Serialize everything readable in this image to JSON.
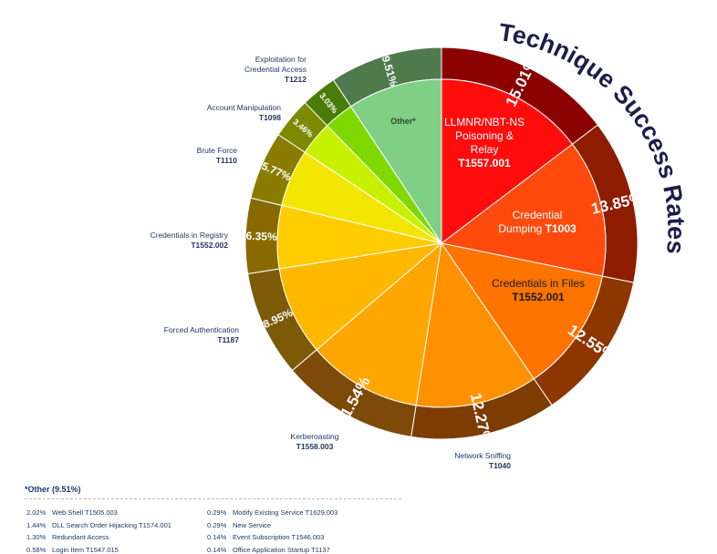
{
  "chart_data": {
    "type": "pie",
    "title": "Technique Success Rates",
    "slices": [
      {
        "value": 15.01,
        "label": "15.01%",
        "name": "LLMNR/NBT-NS Poisoning & Relay",
        "code": "T1557.001",
        "inner": "#ff0d0d",
        "outer": "#8b0000"
      },
      {
        "value": 13.85,
        "label": "13.85%",
        "name": "Credential Dumping",
        "code": "T1003",
        "inner": "#ff4a0d",
        "outer": "#8e1c00"
      },
      {
        "value": 12.55,
        "label": "12.55%",
        "name": "Credentials in Files",
        "code": "T1552.001",
        "inner": "#ff7400",
        "outer": "#8d3600"
      },
      {
        "value": 12.27,
        "label": "12.27%",
        "name": "Network Sniffing",
        "code": "T1040",
        "inner": "#ff9100",
        "outer": "#7c3c02"
      },
      {
        "value": 11.54,
        "label": "11.54%",
        "name": "Kerberoasting",
        "code": "T1558.003",
        "inner": "#ffa600",
        "outer": "#7d4a0a"
      },
      {
        "value": 8.95,
        "label": "8.95%",
        "name": "Forced Authentication",
        "code": "T1187",
        "inner": "#ffb800",
        "outer": "#7d5a07"
      },
      {
        "value": 6.35,
        "label": "6.35%",
        "name": "Credentials in Registry",
        "code": "T1552.002",
        "inner": "#ffcc00",
        "outer": "#886a00"
      },
      {
        "value": 5.77,
        "label": "5.77%",
        "name": "Brute Force",
        "code": "T1110",
        "inner": "#f2e600",
        "outer": "#8a7c00"
      },
      {
        "value": 3.46,
        "label": "3.46%",
        "name": "Account Manipulation",
        "code": "T1098",
        "inner": "#c6f000",
        "outer": "#7c8a00"
      },
      {
        "value": 3.03,
        "label": "3.03%",
        "name": "Exploitation for Credential Access",
        "code": "T1212",
        "inner": "#7fd900",
        "outer": "#4a7c0a"
      },
      {
        "value": 9.51,
        "label": "9.51%",
        "name": "Other*",
        "code": "",
        "inner": "#7fcf87",
        "outer": "#4f7a4d"
      }
    ]
  },
  "labels": {
    "s0_name1": "LLMNR/NBT-NS",
    "s0_name2": "Poisoning &",
    "s0_name3": "Relay",
    "s0_code": "T1557.001",
    "s1_name1": "Credential",
    "s1_name2": "Dumping",
    "s1_code": "T1003",
    "s2_name": "Credentials in Files",
    "s2_code": "T1552.001",
    "other_name": "Other*",
    "ext_exploitation_1": "Exploitation for",
    "ext_exploitation_2": "Credential Access",
    "ext_exploitation_code": "T1212",
    "ext_account": "Account Manipulation",
    "ext_account_code": "T1098",
    "ext_brute": "Brute Force",
    "ext_brute_code": "T1110",
    "ext_registry": "Credentials in Registry",
    "ext_registry_code": "T1552.002",
    "ext_forced": "Forced Authentication",
    "ext_forced_code": "T1187",
    "ext_kerb": "Kerberoasting",
    "ext_kerb_code": "T1558.003",
    "ext_sniff": "Network Sniffing",
    "ext_sniff_code": "T1040"
  },
  "other_breakdown": {
    "heading": "*Other (9.51%)",
    "left": [
      {
        "pct": "2.02%",
        "name": "Web Shell T1505.003"
      },
      {
        "pct": "1.44%",
        "name": "DLL Search Order Hijacking T1574.001"
      },
      {
        "pct": "1.30%",
        "name": "Redundant Access"
      },
      {
        "pct": "0.58%",
        "name": "Login Item T1547.015"
      }
    ],
    "right": [
      {
        "pct": "0.29%",
        "name": "Modify Existing Service T1629.003"
      },
      {
        "pct": "0.29%",
        "name": "New Service"
      },
      {
        "pct": "0.14%",
        "name": "Event Subscription T1546.003"
      },
      {
        "pct": "0.14%",
        "name": "Office Application Startup T1137"
      }
    ]
  }
}
